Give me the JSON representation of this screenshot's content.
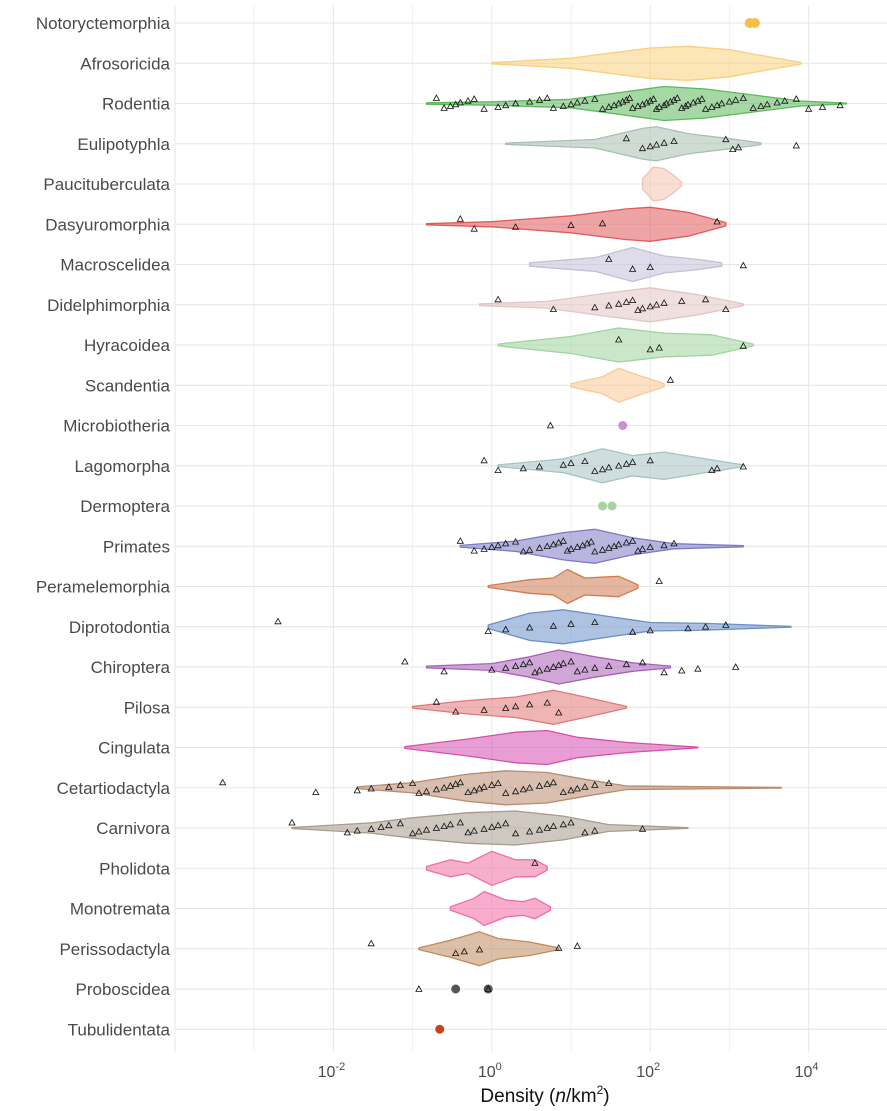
{
  "chart_data": {
    "type": "violin",
    "x_scale": "log10",
    "xlim": [
      0.0001,
      100000
    ],
    "x_ticks": [
      {
        "value": 0.01,
        "base": "10",
        "exp": "-2"
      },
      {
        "value": 1,
        "base": "10",
        "exp": "0"
      },
      {
        "value": 100,
        "base": "10",
        "exp": "2"
      },
      {
        "value": 10000,
        "base": "10",
        "exp": "4"
      }
    ],
    "xlabel": {
      "prefix": "Density (",
      "italic": "n",
      "middle": "/km",
      "sup": "2",
      "suffix": ")"
    },
    "grid": true,
    "legend": "none",
    "categories": [
      {
        "name": "Notoryctemorphia",
        "color": "#f5c04a",
        "points": [
          1800,
          2100
        ]
      },
      {
        "name": "Afrosoricida",
        "color": "#f9cf7c",
        "min": 1,
        "max": 8000,
        "profile": [
          [
            1,
            0.03
          ],
          [
            10,
            0.3
          ],
          [
            100,
            0.9
          ],
          [
            300,
            1
          ],
          [
            1000,
            0.8
          ],
          [
            3000,
            0.4
          ],
          [
            8000,
            0.05
          ]
        ]
      },
      {
        "name": "Rodentia",
        "color": "#5cb85c",
        "min": 0.15,
        "max": 30000,
        "profile": [
          [
            0.15,
            0.04
          ],
          [
            1,
            0.1
          ],
          [
            10,
            0.25
          ],
          [
            50,
            0.7
          ],
          [
            150,
            1
          ],
          [
            500,
            0.85
          ],
          [
            2000,
            0.5
          ],
          [
            8000,
            0.15
          ],
          [
            30000,
            0.02
          ]
        ],
        "points": [
          0.2,
          0.25,
          0.3,
          0.35,
          0.4,
          0.5,
          0.6,
          0.8,
          1.2,
          1.5,
          2,
          3,
          4,
          5,
          6,
          8,
          10,
          12,
          15,
          20,
          25,
          30,
          35,
          40,
          45,
          50,
          55,
          60,
          70,
          80,
          90,
          100,
          110,
          120,
          130,
          150,
          160,
          180,
          200,
          220,
          250,
          280,
          300,
          350,
          400,
          450,
          500,
          600,
          700,
          800,
          1000,
          1200,
          1500,
          2000,
          2500,
          3000,
          4000,
          5000,
          7000,
          10000,
          15000,
          25000
        ]
      },
      {
        "name": "Eulipotyphla",
        "color": "#a8c0b0",
        "min": 1.5,
        "max": 2500,
        "profile": [
          [
            1.5,
            0.04
          ],
          [
            20,
            0.25
          ],
          [
            80,
            0.9
          ],
          [
            120,
            1
          ],
          [
            300,
            0.6
          ],
          [
            1000,
            0.3
          ],
          [
            2500,
            0.05
          ]
        ],
        "points": [
          50,
          80,
          100,
          120,
          150,
          200,
          900,
          1100,
          1300,
          7000
        ]
      },
      {
        "name": "Paucituberculata",
        "color": "#f2c4b0",
        "min": 80,
        "max": 250,
        "profile": [
          [
            80,
            0.3
          ],
          [
            110,
            1
          ],
          [
            150,
            0.9
          ],
          [
            200,
            0.5
          ],
          [
            250,
            0.1
          ]
        ]
      },
      {
        "name": "Dasyuromorphia",
        "color": "#e05a5a",
        "min": 0.15,
        "max": 900,
        "profile": [
          [
            0.15,
            0.03
          ],
          [
            1,
            0.15
          ],
          [
            10,
            0.5
          ],
          [
            50,
            0.9
          ],
          [
            100,
            1
          ],
          [
            300,
            0.7
          ],
          [
            900,
            0.1
          ]
        ],
        "points": [
          0.4,
          0.6,
          2,
          10,
          25,
          700
        ]
      },
      {
        "name": "Macroscelidea",
        "color": "#c4bfd8",
        "min": 3,
        "max": 800,
        "profile": [
          [
            3,
            0.1
          ],
          [
            20,
            0.4
          ],
          [
            60,
            1
          ],
          [
            150,
            0.5
          ],
          [
            400,
            0.3
          ],
          [
            800,
            0.1
          ]
        ],
        "points": [
          30,
          60,
          100,
          1500
        ]
      },
      {
        "name": "Didelphimorphia",
        "color": "#e3c4c4",
        "min": 0.7,
        "max": 1500,
        "profile": [
          [
            0.7,
            0.05
          ],
          [
            5,
            0.2
          ],
          [
            30,
            0.7
          ],
          [
            100,
            1
          ],
          [
            400,
            0.6
          ],
          [
            1500,
            0.05
          ]
        ],
        "points": [
          1.2,
          6,
          20,
          30,
          40,
          50,
          60,
          70,
          80,
          100,
          120,
          150,
          250,
          500,
          900
        ]
      },
      {
        "name": "Hyracoidea",
        "color": "#9fd49f",
        "min": 1.2,
        "max": 2000,
        "profile": [
          [
            1.2,
            0.05
          ],
          [
            10,
            0.5
          ],
          [
            40,
            1
          ],
          [
            150,
            0.7
          ],
          [
            600,
            0.6
          ],
          [
            2000,
            0.05
          ]
        ],
        "points": [
          40,
          100,
          130,
          1500
        ]
      },
      {
        "name": "Scandentia",
        "color": "#f9c994",
        "min": 10,
        "max": 150,
        "profile": [
          [
            10,
            0.1
          ],
          [
            25,
            0.5
          ],
          [
            40,
            1
          ],
          [
            70,
            0.6
          ],
          [
            150,
            0.1
          ]
        ],
        "points": [
          180
        ]
      },
      {
        "name": "Microbiotheria",
        "color": "#cc8fcf",
        "points": [
          45
        ],
        "extra_points": [
          5.5
        ]
      },
      {
        "name": "Lagomorpha",
        "color": "#a6c2c2",
        "min": 1.2,
        "max": 1500,
        "profile": [
          [
            1.2,
            0.05
          ],
          [
            8,
            0.4
          ],
          [
            25,
            1
          ],
          [
            60,
            0.6
          ],
          [
            150,
            0.8
          ],
          [
            500,
            0.4
          ],
          [
            1500,
            0.05
          ]
        ],
        "points": [
          0.8,
          1.2,
          2.5,
          4,
          8,
          10,
          15,
          20,
          25,
          30,
          40,
          50,
          60,
          100,
          600,
          700,
          1500
        ]
      },
      {
        "name": "Dermoptera",
        "color": "#a8d3a0",
        "points": [
          25,
          33
        ]
      },
      {
        "name": "Primates",
        "color": "#7d7ac4",
        "min": 0.4,
        "max": 1500,
        "profile": [
          [
            0.4,
            0.05
          ],
          [
            2,
            0.3
          ],
          [
            8,
            0.8
          ],
          [
            20,
            1
          ],
          [
            60,
            0.5
          ],
          [
            200,
            0.15
          ],
          [
            1500,
            0.03
          ]
        ],
        "points": [
          0.4,
          0.6,
          0.8,
          1,
          1.2,
          1.5,
          2,
          2.5,
          3,
          4,
          5,
          6,
          7,
          8,
          9,
          10,
          12,
          14,
          16,
          18,
          20,
          25,
          30,
          35,
          40,
          50,
          60,
          70,
          80,
          100,
          150,
          200
        ]
      },
      {
        "name": "Peramelemorphia",
        "color": "#d07a50",
        "min": 0.9,
        "max": 70,
        "profile": [
          [
            0.9,
            0.05
          ],
          [
            3,
            0.4
          ],
          [
            6,
            0.5
          ],
          [
            9,
            1
          ],
          [
            15,
            0.5
          ],
          [
            40,
            0.6
          ],
          [
            70,
            0.1
          ]
        ],
        "points": [
          130
        ]
      },
      {
        "name": "Diprotodontia",
        "color": "#6b8fc8",
        "min": 0.9,
        "max": 6000,
        "profile": [
          [
            0.9,
            0.1
          ],
          [
            3,
            0.8
          ],
          [
            8,
            1
          ],
          [
            30,
            0.6
          ],
          [
            100,
            0.25
          ],
          [
            500,
            0.2
          ],
          [
            6000,
            0.02
          ]
        ],
        "points": [
          0.002,
          0.9,
          1.5,
          3,
          6,
          10,
          20,
          60,
          100,
          300,
          500,
          900
        ]
      },
      {
        "name": "Chiroptera",
        "color": "#a860b8",
        "min": 0.15,
        "max": 180,
        "profile": [
          [
            0.15,
            0.05
          ],
          [
            1,
            0.2
          ],
          [
            3,
            0.6
          ],
          [
            7,
            1
          ],
          [
            20,
            0.6
          ],
          [
            60,
            0.25
          ],
          [
            180,
            0.05
          ]
        ],
        "points": [
          0.08,
          0.25,
          1,
          1.5,
          2,
          2.5,
          3,
          3.5,
          4,
          5,
          6,
          7,
          8,
          10,
          12,
          15,
          20,
          30,
          50,
          80,
          150,
          250,
          400,
          1200
        ]
      },
      {
        "name": "Pilosa",
        "color": "#e27878",
        "min": 0.1,
        "max": 50,
        "profile": [
          [
            0.1,
            0.05
          ],
          [
            0.5,
            0.4
          ],
          [
            2,
            0.6
          ],
          [
            6,
            1
          ],
          [
            15,
            0.6
          ],
          [
            50,
            0.05
          ]
        ],
        "points": [
          0.2,
          0.35,
          0.8,
          1.5,
          2,
          3,
          5,
          7
        ]
      },
      {
        "name": "Cingulata",
        "color": "#d54fb0",
        "min": 0.08,
        "max": 400,
        "profile": [
          [
            0.08,
            0.05
          ],
          [
            0.5,
            0.5
          ],
          [
            2,
            0.9
          ],
          [
            5,
            1
          ],
          [
            12,
            0.6
          ],
          [
            50,
            0.3
          ],
          [
            400,
            0.02
          ]
        ]
      },
      {
        "name": "Cetartiodactyla",
        "color": "#b88a6e",
        "min": 0.02,
        "max": 4500,
        "profile": [
          [
            0.02,
            0.05
          ],
          [
            0.1,
            0.3
          ],
          [
            0.5,
            0.8
          ],
          [
            1.5,
            1
          ],
          [
            5,
            0.9
          ],
          [
            15,
            0.5
          ],
          [
            50,
            0.1
          ],
          [
            4500,
            0.02
          ]
        ],
        "points": [
          0.0004,
          0.006,
          0.02,
          0.03,
          0.05,
          0.07,
          0.1,
          0.12,
          0.15,
          0.2,
          0.25,
          0.3,
          0.35,
          0.4,
          0.5,
          0.6,
          0.7,
          0.8,
          1,
          1.2,
          1.5,
          2,
          2.5,
          3,
          4,
          5,
          6,
          8,
          10,
          12,
          15,
          20,
          30
        ]
      },
      {
        "name": "Carnivora",
        "color": "#a89a8c",
        "min": 0.003,
        "max": 300,
        "profile": [
          [
            0.003,
            0.03
          ],
          [
            0.03,
            0.3
          ],
          [
            0.1,
            0.6
          ],
          [
            0.5,
            0.9
          ],
          [
            2,
            1
          ],
          [
            8,
            0.7
          ],
          [
            30,
            0.2
          ],
          [
            300,
            0.02
          ]
        ],
        "points": [
          0.003,
          0.015,
          0.02,
          0.03,
          0.04,
          0.05,
          0.07,
          0.1,
          0.12,
          0.15,
          0.2,
          0.25,
          0.3,
          0.4,
          0.5,
          0.6,
          0.8,
          1,
          1.2,
          1.5,
          2,
          3,
          4,
          5,
          6,
          8,
          10,
          15,
          20,
          80
        ]
      },
      {
        "name": "Pholidota",
        "color": "#f06fa2",
        "min": 0.15,
        "max": 5,
        "profile": [
          [
            0.15,
            0.1
          ],
          [
            0.3,
            0.5
          ],
          [
            0.5,
            0.3
          ],
          [
            1,
            1
          ],
          [
            2,
            0.5
          ],
          [
            3.5,
            0.5
          ],
          [
            5,
            0.1
          ]
        ],
        "points": [
          3.5
        ]
      },
      {
        "name": "Monotremata",
        "color": "#f26aa8",
        "min": 0.3,
        "max": 5.5,
        "profile": [
          [
            0.3,
            0.1
          ],
          [
            0.6,
            0.6
          ],
          [
            0.8,
            1
          ],
          [
            1.5,
            0.5
          ],
          [
            2.5,
            0.4
          ],
          [
            3.5,
            0.6
          ],
          [
            5.5,
            0.1
          ]
        ]
      },
      {
        "name": "Perissodactyla",
        "color": "#c08a5e",
        "min": 0.12,
        "max": 7,
        "profile": [
          [
            0.12,
            0.05
          ],
          [
            0.3,
            0.5
          ],
          [
            0.7,
            1
          ],
          [
            1.2,
            0.6
          ],
          [
            3,
            0.4
          ],
          [
            7,
            0.05
          ]
        ],
        "points": [
          0.03,
          0.35,
          0.45,
          0.7,
          7,
          12
        ]
      },
      {
        "name": "Proboscidea",
        "color": "#555555",
        "points": [
          0.35,
          0.9
        ],
        "extra_points": [
          0.12,
          0.9
        ]
      },
      {
        "name": "Tubulidentata",
        "color": "#c9441d",
        "points": [
          0.22
        ]
      }
    ]
  }
}
